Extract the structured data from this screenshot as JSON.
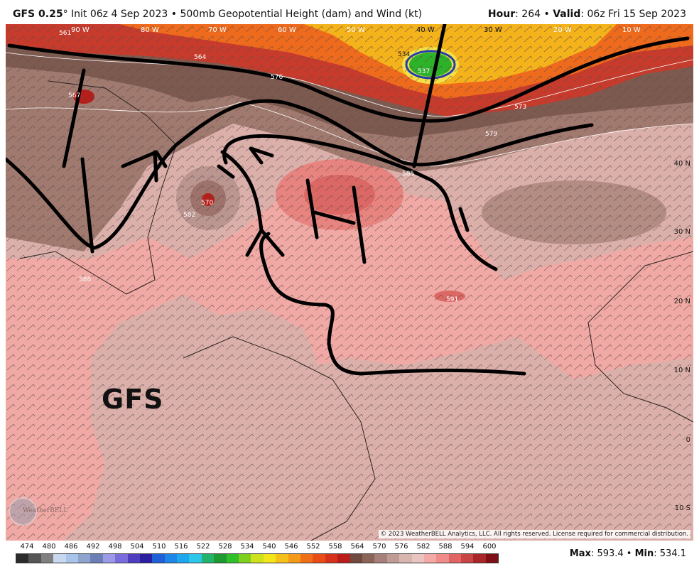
{
  "header": {
    "model": "GFS 0.25",
    "degree": "°",
    "init": "Init 06z 4 Sep 2023",
    "bullet": "•",
    "product": "500mb Geopotential Height (dam) and Wind (kt)",
    "hour_label": "Hour",
    "hour_value": "264",
    "valid_label": "Valid",
    "valid_value": "06z Fri 15 Sep 2023"
  },
  "map": {
    "lon_labels": [
      "90 W",
      "80 W",
      "70 W",
      "60 W",
      "50 W",
      "40 W",
      "30 W",
      "20 W",
      "10 W"
    ],
    "lat_labels": [
      "40 N",
      "30 N",
      "20 N",
      "10 N",
      "0",
      "10 S"
    ],
    "contour_labels": [
      "561",
      "564",
      "567",
      "570",
      "573",
      "576",
      "579",
      "582",
      "585",
      "588",
      "591",
      "537",
      "534"
    ],
    "annotation": "GFS",
    "copyright": "© 2023 WeatherBELL Analytics, LLC. All rights reserved. License required for commercial distribution.",
    "logo_text": "WeatherBELL"
  },
  "legend": {
    "values": [
      "474",
      "480",
      "486",
      "492",
      "498",
      "504",
      "510",
      "516",
      "522",
      "528",
      "534",
      "540",
      "546",
      "552",
      "558",
      "564",
      "570",
      "576",
      "582",
      "588",
      "594",
      "600"
    ],
    "colors": [
      "#2b2b2b",
      "#555555",
      "#808080",
      "#c8d8ee",
      "#a8c4e8",
      "#8ea4cf",
      "#6c7fb5",
      "#9a9ae8",
      "#7b6cdc",
      "#4f3fbf",
      "#2a1fa0",
      "#1f5fd8",
      "#1e86e6",
      "#1fa7ee",
      "#2cc7e8",
      "#23b36c",
      "#1f9a33",
      "#2fc02a",
      "#7ed01f",
      "#cde21c",
      "#f2e61b",
      "#f4c11a",
      "#f39a18",
      "#ef6f16",
      "#e84c17",
      "#d8301a",
      "#b91d1a",
      "#6e4a40",
      "#8a6457",
      "#a6807a",
      "#c09b95",
      "#d8b6b0",
      "#e9c4c0",
      "#f5a9a6",
      "#ef8b88",
      "#e06564",
      "#c94544",
      "#a8252a",
      "#7d0f16"
    ]
  },
  "stats": {
    "max_label": "Max",
    "max_value": "593.4",
    "min_label": "Min",
    "min_value": "534.1"
  }
}
